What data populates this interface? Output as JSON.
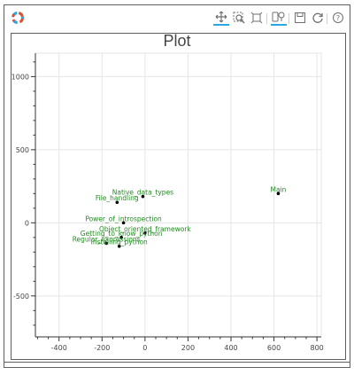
{
  "toolbar": {
    "logo_icon": "bokeh-logo-icon",
    "tools": [
      {
        "name": "pan-icon",
        "active": true
      },
      {
        "name": "box-zoom-icon",
        "active": false
      },
      {
        "name": "wheel-zoom-icon",
        "active": false
      },
      {
        "name": "tap-icon",
        "active": true
      },
      {
        "name": "save-icon",
        "active": false
      },
      {
        "name": "reset-icon",
        "active": false
      },
      {
        "name": "help-icon",
        "active": false
      }
    ],
    "active_color": "#26aae1"
  },
  "chart_data": {
    "type": "scatter",
    "title": "Plot",
    "xlim": [
      -510,
      820
    ],
    "ylim": [
      -780,
      1160
    ],
    "xticks": [
      -400,
      -200,
      0,
      200,
      400,
      600,
      800
    ],
    "yticks": [
      -500,
      0,
      500,
      1000
    ],
    "grid": true,
    "point_color": "#000000",
    "label_color": "#228b22",
    "points": [
      {
        "label": "Main",
        "x": 620,
        "y": 200
      },
      {
        "label": "Native_data_types",
        "x": -10,
        "y": 180
      },
      {
        "label": "File_handling",
        "x": -130,
        "y": 140
      },
      {
        "label": "Power_of_introspection",
        "x": -100,
        "y": 0
      },
      {
        "label": "Object_oriented_framework",
        "x": 0,
        "y": -70
      },
      {
        "label": "Getting_to_know_python",
        "x": -110,
        "y": -100
      },
      {
        "label": "Regular_expressions",
        "x": -180,
        "y": -140
      },
      {
        "label": "Installing_python",
        "x": -120,
        "y": -160
      }
    ]
  }
}
